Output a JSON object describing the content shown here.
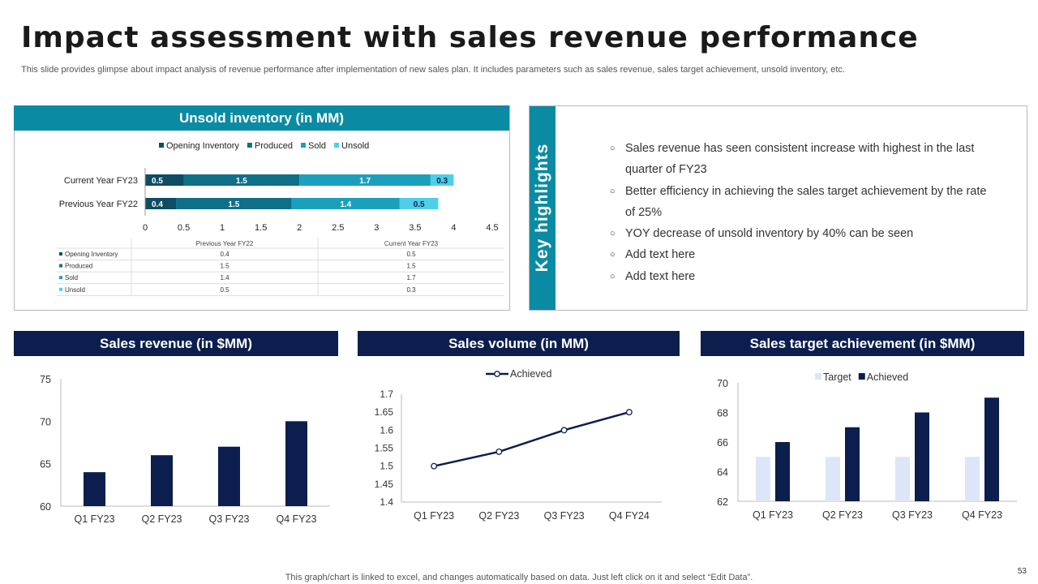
{
  "title": "Impact assessment with sales revenue performance",
  "subtitle": "This slide provides glimpse about impact analysis of revenue performance after implementation of new sales plan. It includes parameters such as sales revenue, sales target achievement, unsold inventory, etc.",
  "footer": "This graph/chart is linked to excel, and changes automatically based on data. Just left click on it and select “Edit Data”.",
  "page_number": "53",
  "key_highlights": {
    "label": "Key highlights",
    "items": [
      "Sales revenue has seen consistent increase with highest in the last quarter of FY23",
      "Better efficiency in achieving the sales target achievement by the rate of 25%",
      "YOY decrease of unsold inventory by 40% can be seen",
      "Add text here",
      "Add text here"
    ]
  },
  "colors": {
    "teal": "#0b8ba3",
    "navy": "#0b1e4d",
    "opening": "#0e4d64",
    "produced": "#0f6f86",
    "sold": "#1aa0bd",
    "unsold": "#4dcfe9",
    "target": "#dce6f8"
  },
  "chart_data": [
    {
      "id": "unsold",
      "type": "bar",
      "orientation": "horizontal",
      "stacked": true,
      "title": "Unsold inventory (in MM)",
      "categories": [
        "Current Year FY23",
        "Previous Year FY22"
      ],
      "series": [
        {
          "name": "Opening Inventory",
          "values": [
            0.5,
            0.4
          ]
        },
        {
          "name": "Produced",
          "values": [
            1.5,
            1.5
          ]
        },
        {
          "name": "Sold",
          "values": [
            1.7,
            1.4
          ]
        },
        {
          "name": "Unsold",
          "values": [
            0.3,
            0.5
          ]
        }
      ],
      "xlim": [
        0,
        4.5
      ],
      "x_ticks": [
        "0",
        "0.5",
        "1",
        "1.5",
        "2",
        "2.5",
        "3",
        "3.5",
        "4",
        "4.5"
      ],
      "legend": "top",
      "data_table": {
        "columns": [
          "Previous Year FY22",
          "Current Year FY23"
        ],
        "rows": [
          {
            "name": "Opening Inventory",
            "values": [
              "0.4",
              "0.5"
            ]
          },
          {
            "name": "Produced",
            "values": [
              "1.5",
              "1.5"
            ]
          },
          {
            "name": "Sold",
            "values": [
              "1.4",
              "1.7"
            ]
          },
          {
            "name": "Unsold",
            "values": [
              "0.5",
              "0.3"
            ]
          }
        ]
      }
    },
    {
      "id": "revenue",
      "type": "bar",
      "title": "Sales revenue (in $MM)",
      "categories": [
        "Q1 FY23",
        "Q2 FY23",
        "Q3 FY23",
        "Q4 FY23"
      ],
      "values": [
        64,
        66,
        67,
        70
      ],
      "ylim": [
        60,
        75
      ],
      "y_ticks": [
        "60",
        "65",
        "70",
        "75"
      ]
    },
    {
      "id": "volume",
      "type": "line",
      "title": "Sales volume (in MM)",
      "categories": [
        "Q1 FY23",
        "Q2 FY23",
        "Q3 FY23",
        "Q4 FY24"
      ],
      "series": [
        {
          "name": "Achieved",
          "values": [
            1.5,
            1.54,
            1.6,
            1.65
          ]
        }
      ],
      "ylim": [
        1.4,
        1.7
      ],
      "y_ticks": [
        "1.4",
        "1.45",
        "1.5",
        "1.55",
        "1.6",
        "1.65",
        "1.7"
      ],
      "legend": "top"
    },
    {
      "id": "target",
      "type": "bar",
      "title": "Sales target achievement (in $MM)",
      "categories": [
        "Q1 FY23",
        "Q2 FY23",
        "Q3 FY23",
        "Q4 FY23"
      ],
      "series": [
        {
          "name": "Target",
          "values": [
            65,
            65,
            65,
            65
          ]
        },
        {
          "name": "Achieved",
          "values": [
            66,
            67,
            68,
            69
          ]
        }
      ],
      "ylim": [
        62,
        70
      ],
      "y_ticks": [
        "62",
        "64",
        "66",
        "68",
        "70"
      ],
      "legend": "top"
    }
  ]
}
